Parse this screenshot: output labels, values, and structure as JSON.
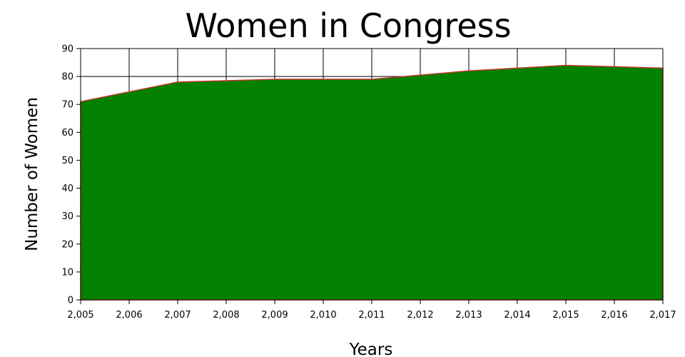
{
  "chart_data": {
    "type": "area",
    "title": "Women in Congress",
    "xlabel": "Years",
    "ylabel": "Number of Women",
    "x": [
      2005,
      2006,
      2007,
      2008,
      2009,
      2010,
      2011,
      2012,
      2013,
      2014,
      2015,
      2016,
      2017
    ],
    "x_tick_labels": [
      "2,005",
      "2,006",
      "2,007",
      "2,008",
      "2,009",
      "2,010",
      "2,011",
      "2,012",
      "2,013",
      "2,014",
      "2,015",
      "2,016",
      "2,017"
    ],
    "y_ticks": [
      "0",
      "10",
      "20",
      "30",
      "40",
      "50",
      "60",
      "70",
      "80",
      "90"
    ],
    "series": [
      {
        "values": [
          71,
          74.5,
          78,
          78.5,
          79,
          79,
          79,
          80.5,
          82,
          83,
          84,
          83.5,
          83
        ],
        "fill_color": "#028001",
        "line_color": "#c0392b"
      }
    ],
    "xlim": [
      2005,
      2017
    ],
    "ylim": [
      0,
      90
    ],
    "grid": true,
    "legend": "none"
  }
}
